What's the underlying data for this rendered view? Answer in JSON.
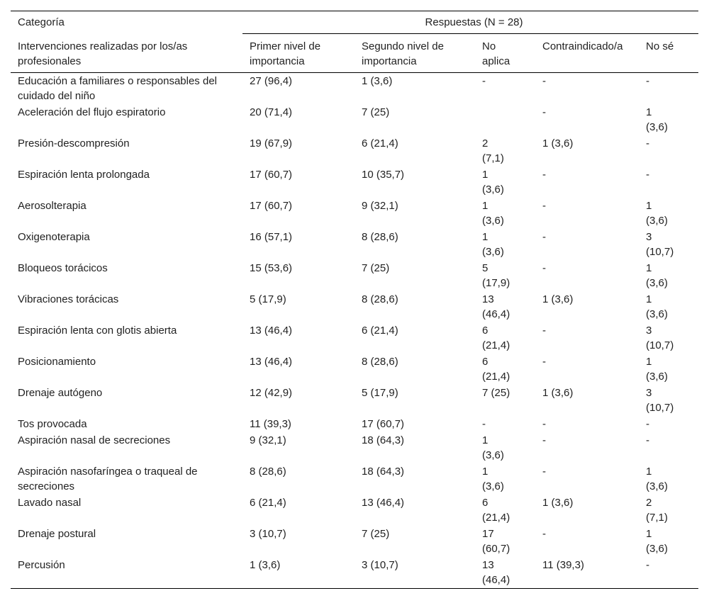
{
  "table": {
    "header": {
      "category": "Categoría",
      "responses": "Respuestas (N = 28)",
      "columns": [
        "Intervenciones realizadas por los/as profesionales",
        "Primer nivel de importancia",
        "Segundo nivel de importancia",
        "No aplica",
        "Contraindicado/a",
        "No sé"
      ]
    },
    "rows": [
      [
        "Educación a familiares o responsables del cuidado del niño",
        "27 (96,4)",
        "1 (3,6)",
        "-",
        "-",
        "-"
      ],
      [
        "Aceleración del flujo espiratorio",
        "20 (71,4)",
        "7 (25)",
        null,
        "-",
        "1 (3,6)"
      ],
      [
        "Presión-descompresión",
        "19 (67,9)",
        "6 (21,4)",
        "2 (7,1)",
        "1 (3,6)",
        "-"
      ],
      [
        "Espiración lenta prolongada",
        "17 (60,7)",
        "10 (35,7)",
        "1 (3,6)",
        "-",
        "-"
      ],
      [
        "Aerosolterapia",
        "17 (60,7)",
        "9 (32,1)",
        "1 (3,6)",
        "-",
        "1 (3,6)"
      ],
      [
        "Oxigenoterapia",
        "16 (57,1)",
        "8 (28,6)",
        "1 (3,6)",
        "-",
        "3 (10,7)"
      ],
      [
        "Bloqueos torácicos",
        "15 (53,6)",
        "7 (25)",
        "5 (17,9)",
        "-",
        "1 (3,6)"
      ],
      [
        "Vibraciones torácicas",
        "5 (17,9)",
        "8 (28,6)",
        "13 (46,4)",
        "1 (3,6)",
        "1 (3,6)"
      ],
      [
        "Espiración lenta con glotis abierta",
        "13 (46,4)",
        "6 (21,4)",
        "6 (21,4)",
        "-",
        "3 (10,7)"
      ],
      [
        "Posicionamiento",
        "13 (46,4)",
        "8 (28,6)",
        "6 (21,4)",
        "-",
        "1 (3,6)"
      ],
      [
        "Drenaje autógeno",
        "12 (42,9)",
        "5 (17,9)",
        "7 (25)",
        "1 (3,6)",
        "3 (10,7)"
      ],
      [
        "Tos provocada",
        "11 (39,3)",
        "17 (60,7)",
        "-",
        "-",
        "-"
      ],
      [
        "Aspiración nasal de secreciones",
        "9 (32,1)",
        "18 (64,3)",
        "1 (3,6)",
        "-",
        "-"
      ],
      [
        "Aspiración nasofaríngea o traqueal de secreciones",
        "8 (28,6)",
        "18 (64,3)",
        "1 (3,6)",
        "-",
        "1 (3,6)"
      ],
      [
        "Lavado nasal",
        "6 (21,4)",
        "13 (46,4)",
        "6 (21,4)",
        "1 (3,6)",
        "2 (7,1)"
      ],
      [
        "Drenaje postural",
        "3 (10,7)",
        "7 (25)",
        "17 (60,7)",
        "-",
        "1 (3,6)"
      ],
      [
        "Percusión",
        "1 (3,6)",
        "3 (10,7)",
        "13 (46,4)",
        "11 (39,3)",
        "-"
      ]
    ]
  }
}
